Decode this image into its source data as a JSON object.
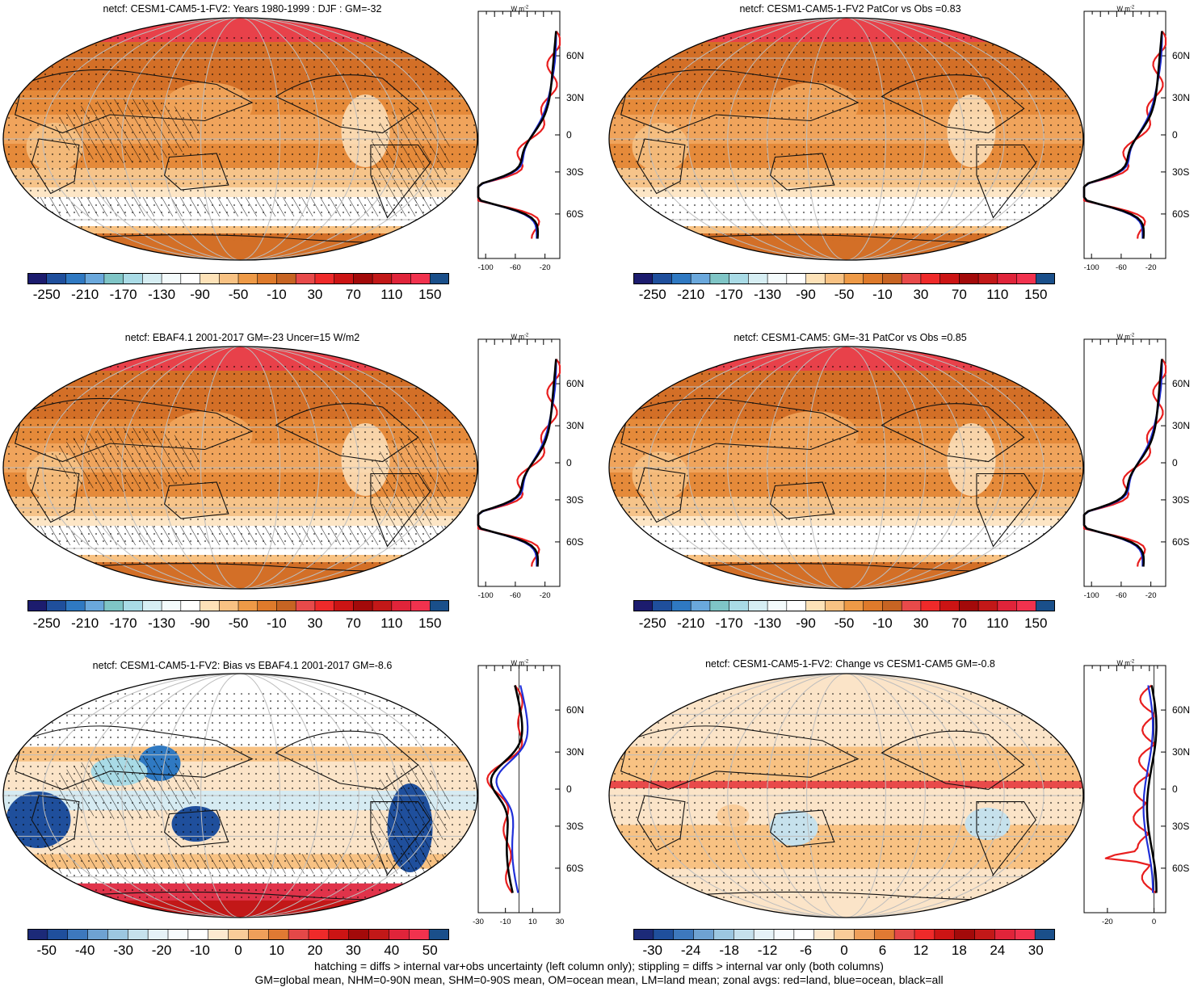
{
  "palette_main": [
    "#1c1c6e",
    "#1f4f9c",
    "#2f79c2",
    "#6aa8dc",
    "#7fc5c6",
    "#a9dbe6",
    "#d6eef3",
    "#f4fbfc",
    "#ffffff",
    "#fde2b8",
    "#f8c283",
    "#ee9a47",
    "#de7a2b",
    "#c76423",
    "#e84a4a",
    "#ef2a2a",
    "#cc1414",
    "#a30a0a",
    "#c21818",
    "#e0243a",
    "#f1324e",
    "#1a4f8a"
  ],
  "palette_diff": [
    "#1c2a78",
    "#1f4f9c",
    "#3d78bd",
    "#6ea2d2",
    "#9cc7e0",
    "#c6e1ec",
    "#e6f2f7",
    "#f7fbfd",
    "#ffffff",
    "#fde9cf",
    "#f9cc99",
    "#ef9f5a",
    "#e07a33",
    "#e44848",
    "#ef2a2a",
    "#cc1414",
    "#a30a0a",
    "#c21818",
    "#e0243a",
    "#f1324e",
    "#1a4f8a"
  ],
  "panels": [
    {
      "title": "netcf: CESM1-CAM5-1-FV2: Years 1980-1999 : DJF : GM=-32",
      "kind": "main",
      "hatch": true,
      "cbar_labels": [
        "-250",
        "-210",
        "-170",
        "-130",
        "-90",
        "-50",
        "-10",
        "30",
        "70",
        "110",
        "150"
      ],
      "zonal_ticks": [
        "-100",
        "-60",
        "-20"
      ],
      "zonal_xrange": [
        -110,
        0
      ]
    },
    {
      "title": "netcf: CESM1-CAM5-1-FV2 PatCor vs Obs =0.83",
      "kind": "main",
      "hatch": false,
      "cbar_labels": [
        "-250",
        "-210",
        "-170",
        "-130",
        "-90",
        "-50",
        "-10",
        "30",
        "70",
        "110",
        "150"
      ],
      "zonal_ticks": [
        "-100",
        "-60",
        "-20"
      ],
      "zonal_xrange": [
        -110,
        0
      ]
    },
    {
      "title": "netcf: EBAF4.1 2001-2017 GM=-23 Uncer=15 W/m2",
      "kind": "main",
      "hatch": true,
      "cbar_labels": [
        "-250",
        "-210",
        "-170",
        "-130",
        "-90",
        "-50",
        "-10",
        "30",
        "70",
        "110",
        "150"
      ],
      "zonal_ticks": [
        "-100",
        "-60",
        "-20"
      ],
      "zonal_xrange": [
        -110,
        0
      ]
    },
    {
      "title": "netcf: CESM1-CAM5: GM=-31 PatCor vs Obs =0.85",
      "kind": "main",
      "hatch": false,
      "cbar_labels": [
        "-250",
        "-210",
        "-170",
        "-130",
        "-90",
        "-50",
        "-10",
        "30",
        "70",
        "110",
        "150"
      ],
      "zonal_ticks": [
        "-100",
        "-60",
        "-20"
      ],
      "zonal_xrange": [
        -110,
        0
      ]
    },
    {
      "title": "netcf: CESM1-CAM5-1-FV2: Bias vs EBAF4.1 2001-2017 GM=-8.6",
      "kind": "bias",
      "hatch": true,
      "cbar_labels": [
        "-50",
        "-40",
        "-30",
        "-20",
        "-10",
        "0",
        "10",
        "20",
        "30",
        "40",
        "50"
      ],
      "zonal_ticks": [
        "-30",
        "-10",
        "10",
        "30"
      ],
      "zonal_xrange": [
        -30,
        30
      ]
    },
    {
      "title": "netcf: CESM1-CAM5-1-FV2: Change vs CESM1-CAM5 GM=-0.8",
      "kind": "change",
      "hatch": false,
      "cbar_labels": [
        "-30",
        "-24",
        "-18",
        "-12",
        "-6",
        "0",
        "6",
        "12",
        "18",
        "24",
        "30"
      ],
      "zonal_ticks": [
        "-20",
        "0"
      ],
      "zonal_xrange": [
        -30,
        5
      ]
    }
  ],
  "lat_labels": [
    "60N",
    "30N",
    "0",
    "30S",
    "60S"
  ],
  "zonal_unit": "W m",
  "zonal_unit_exp": "-2",
  "footer": {
    "line1": "hatching = diffs > internal var+obs uncertainty (left column only); stippling = diffs > internal var only (both columns)",
    "line2": "GM=global mean, NHM=0-90N mean, SHM=0-90S mean, OM=ocean mean, LM=land mean; zonal avgs: red=land, blue=ocean, black=all"
  }
}
